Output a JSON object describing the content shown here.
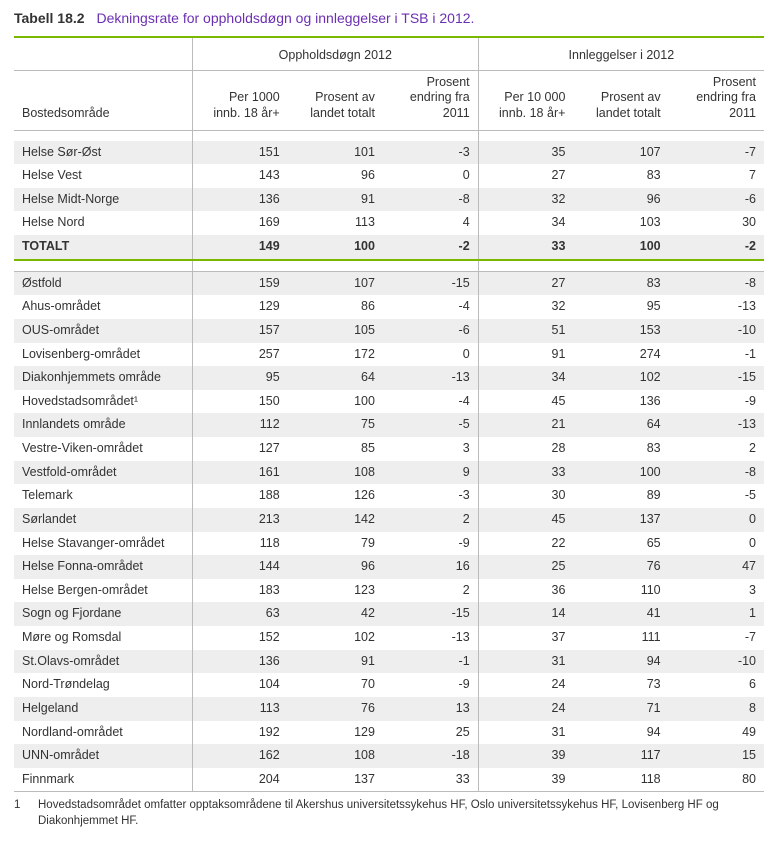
{
  "title": {
    "number": "Tabell 18.2",
    "text": "Dekningsrate for oppholdsdøgn og innleggelser i TSB i 2012."
  },
  "style": {
    "accent_color": "#7ab800",
    "title_color": "#6b2fb3",
    "band_color": "#eeeeee",
    "border_grey": "#bbbbbb",
    "background": "#ffffff",
    "font_family": "Arial",
    "body_fontsize_pt": 10,
    "title_fontsize_pt": 11,
    "footnote_fontsize_pt": 9
  },
  "columns": {
    "row_label": "Bostedsområde",
    "group_a": "Oppholdsdøgn 2012",
    "group_b": "Innleggelser i 2012",
    "a1": "Per 1000 innb. 18 år+",
    "a2": "Prosent av landet totalt",
    "a3": "Prosent endring fra 2011",
    "b1": "Per 10 000 innb. 18 år+",
    "b2": "Prosent av landet totalt",
    "b3": "Prosent endring fra 2011"
  },
  "section1": [
    {
      "label": "Helse Sør-Øst",
      "a1": "151",
      "a2": "101",
      "a3": "-3",
      "b1": "35",
      "b2": "107",
      "b3": "-7"
    },
    {
      "label": "Helse Vest",
      "a1": "143",
      "a2": "96",
      "a3": "0",
      "b1": "27",
      "b2": "83",
      "b3": "7"
    },
    {
      "label": "Helse Midt-Norge",
      "a1": "136",
      "a2": "91",
      "a3": "-8",
      "b1": "32",
      "b2": "96",
      "b3": "-6"
    },
    {
      "label": "Helse Nord",
      "a1": "169",
      "a2": "113",
      "a3": "4",
      "b1": "34",
      "b2": "103",
      "b3": "30"
    },
    {
      "label": "TOTALT",
      "a1": "149",
      "a2": "100",
      "a3": "-2",
      "b1": "33",
      "b2": "100",
      "b3": "-2",
      "total": true
    }
  ],
  "section2": [
    {
      "label": "Østfold",
      "a1": "159",
      "a2": "107",
      "a3": "-15",
      "b1": "27",
      "b2": "83",
      "b3": "-8"
    },
    {
      "label": "Ahus-området",
      "a1": "129",
      "a2": "86",
      "a3": "-4",
      "b1": "32",
      "b2": "95",
      "b3": "-13"
    },
    {
      "label": "OUS-området",
      "a1": "157",
      "a2": "105",
      "a3": "-6",
      "b1": "51",
      "b2": "153",
      "b3": "-10"
    },
    {
      "label": "Lovisenberg-området",
      "a1": "257",
      "a2": "172",
      "a3": "0",
      "b1": "91",
      "b2": "274",
      "b3": "-1"
    },
    {
      "label": "Diakonhjemmets område",
      "a1": "95",
      "a2": "64",
      "a3": "-13",
      "b1": "34",
      "b2": "102",
      "b3": "-15"
    },
    {
      "label": "Hovedstadsområdet¹",
      "a1": "150",
      "a2": "100",
      "a3": "-4",
      "b1": "45",
      "b2": "136",
      "b3": "-9"
    },
    {
      "label": "Innlandets område",
      "a1": "112",
      "a2": "75",
      "a3": "-5",
      "b1": "21",
      "b2": "64",
      "b3": "-13"
    },
    {
      "label": "Vestre-Viken-området",
      "a1": "127",
      "a2": "85",
      "a3": "3",
      "b1": "28",
      "b2": "83",
      "b3": "2"
    },
    {
      "label": "Vestfold-området",
      "a1": "161",
      "a2": "108",
      "a3": "9",
      "b1": "33",
      "b2": "100",
      "b3": "-8"
    },
    {
      "label": "Telemark",
      "a1": "188",
      "a2": "126",
      "a3": "-3",
      "b1": "30",
      "b2": "89",
      "b3": "-5"
    },
    {
      "label": "Sørlandet",
      "a1": "213",
      "a2": "142",
      "a3": "2",
      "b1": "45",
      "b2": "137",
      "b3": "0"
    },
    {
      "label": "Helse Stavanger-området",
      "a1": "118",
      "a2": "79",
      "a3": "-9",
      "b1": "22",
      "b2": "65",
      "b3": "0"
    },
    {
      "label": "Helse Fonna-området",
      "a1": "144",
      "a2": "96",
      "a3": "16",
      "b1": "25",
      "b2": "76",
      "b3": "47"
    },
    {
      "label": "Helse Bergen-området",
      "a1": "183",
      "a2": "123",
      "a3": "2",
      "b1": "36",
      "b2": "110",
      "b3": "3"
    },
    {
      "label": "Sogn og Fjordane",
      "a1": "63",
      "a2": "42",
      "a3": "-15",
      "b1": "14",
      "b2": "41",
      "b3": "1"
    },
    {
      "label": "Møre og Romsdal",
      "a1": "152",
      "a2": "102",
      "a3": "-13",
      "b1": "37",
      "b2": "111",
      "b3": "-7"
    },
    {
      "label": "St.Olavs-området",
      "a1": "136",
      "a2": "91",
      "a3": "-1",
      "b1": "31",
      "b2": "94",
      "b3": "-10"
    },
    {
      "label": "Nord-Trøndelag",
      "a1": "104",
      "a2": "70",
      "a3": "-9",
      "b1": "24",
      "b2": "73",
      "b3": "6"
    },
    {
      "label": "Helgeland",
      "a1": "113",
      "a2": "76",
      "a3": "13",
      "b1": "24",
      "b2": "71",
      "b3": "8"
    },
    {
      "label": "Nordland-området",
      "a1": "192",
      "a2": "129",
      "a3": "25",
      "b1": "31",
      "b2": "94",
      "b3": "49"
    },
    {
      "label": "UNN-området",
      "a1": "162",
      "a2": "108",
      "a3": "-18",
      "b1": "39",
      "b2": "117",
      "b3": "15"
    },
    {
      "label": "Finnmark",
      "a1": "204",
      "a2": "137",
      "a3": "33",
      "b1": "39",
      "b2": "118",
      "b3": "80"
    }
  ],
  "footnote": {
    "num": "1",
    "text": "Hovedstadsområdet omfatter opptaksområdene til Akershus universitetssykehus HF, Oslo universitetssykehus HF, Lovisenberg HF og Diakonhjemmet HF."
  }
}
